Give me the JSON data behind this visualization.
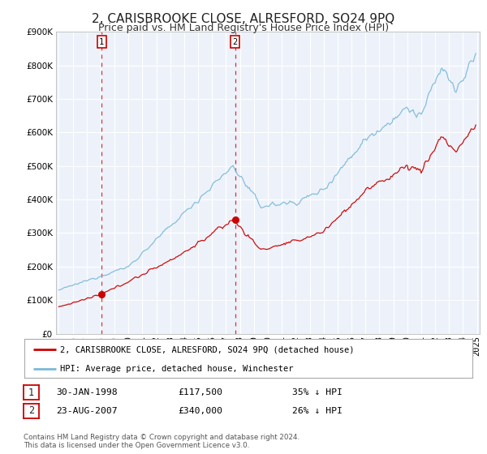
{
  "title": "2, CARISBROOKE CLOSE, ALRESFORD, SO24 9PQ",
  "subtitle": "Price paid vs. HM Land Registry's House Price Index (HPI)",
  "legend_line1": "2, CARISBROOKE CLOSE, ALRESFORD, SO24 9PQ (detached house)",
  "legend_line2": "HPI: Average price, detached house, Winchester",
  "footer1": "Contains HM Land Registry data © Crown copyright and database right 2024.",
  "footer2": "This data is licensed under the Open Government Licence v3.0.",
  "sale1_date": "30-JAN-1998",
  "sale1_price": "£117,500",
  "sale1_hpi": "35% ↓ HPI",
  "sale2_date": "23-AUG-2007",
  "sale2_price": "£340,000",
  "sale2_hpi": "26% ↓ HPI",
  "sale1_x": 1998.08,
  "sale1_y": 117500,
  "sale2_x": 2007.65,
  "sale2_y": 340000,
  "vline1_x": 1998.08,
  "vline2_x": 2007.65,
  "ylim": [
    0,
    900000
  ],
  "xlim_start": 1994.8,
  "xlim_end": 2025.2,
  "hpi_color": "#7ab8d9",
  "price_color": "#cc0000",
  "background_color": "#ffffff",
  "plot_bg_color": "#edf2fa",
  "grid_color": "#ffffff",
  "title_fontsize": 11,
  "subtitle_fontsize": 9,
  "tick_fontsize": 7.5,
  "ytick_labels": [
    "£0",
    "£100K",
    "£200K",
    "£300K",
    "£400K",
    "£500K",
    "£600K",
    "£700K",
    "£800K",
    "£900K"
  ],
  "ytick_values": [
    0,
    100000,
    200000,
    300000,
    400000,
    500000,
    600000,
    700000,
    800000,
    900000
  ],
  "xtick_years": [
    1995,
    1996,
    1997,
    1998,
    1999,
    2000,
    2001,
    2002,
    2003,
    2004,
    2005,
    2006,
    2007,
    2008,
    2009,
    2010,
    2011,
    2012,
    2013,
    2014,
    2015,
    2016,
    2017,
    2018,
    2019,
    2020,
    2021,
    2022,
    2023,
    2024,
    2025
  ]
}
